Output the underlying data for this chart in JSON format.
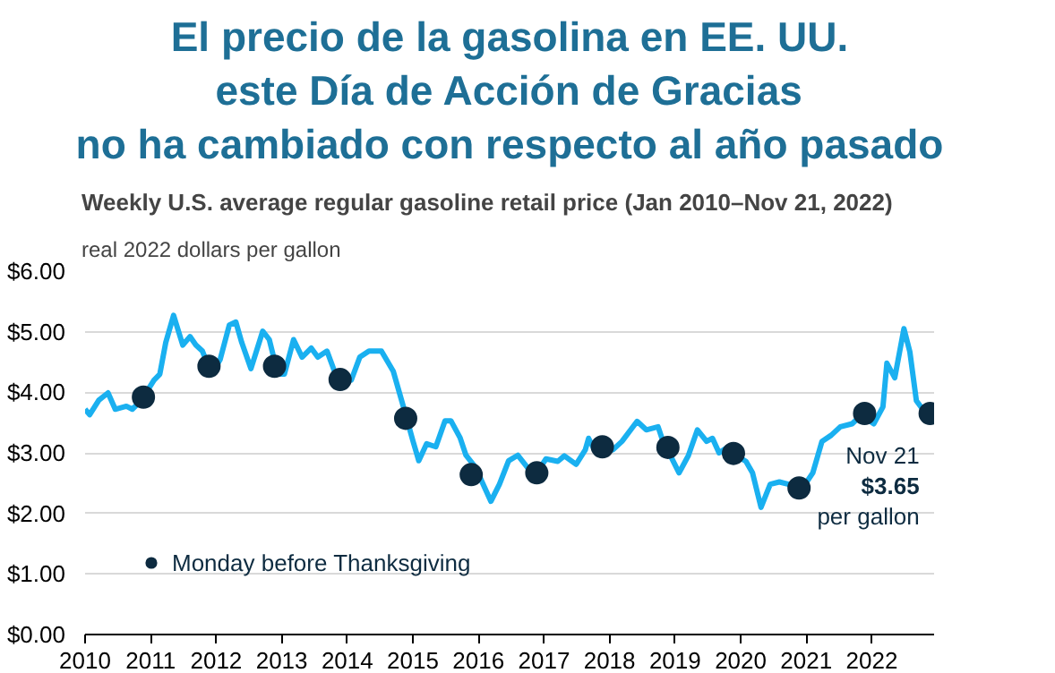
{
  "chart_data": {
    "type": "line",
    "title": "El precio de la gasolina en EE. UU.\neste Día de Acción de Gracias\nno ha cambiado con respecto al año pasado",
    "subtitle": "Weekly U.S. average regular gasoline retail price (Jan 2010–Nov 21, 2022)",
    "ylabel": "real 2022 dollars per gallon",
    "annotations": [
      {
        "text": "Nov 21\n$3.65\nper gallon",
        "x": 2022.89,
        "y": 3.65
      }
    ],
    "xlim": [
      2010,
      2022.95
    ],
    "xticks": [
      2010,
      2011,
      2012,
      2013,
      2014,
      2015,
      2016,
      2017,
      2018,
      2019,
      2020,
      2021,
      2022
    ],
    "ylim": [
      0,
      6
    ],
    "yticks": [
      {
        "value": 0,
        "label": "$0.00"
      },
      {
        "value": 1,
        "label": "$1.00"
      },
      {
        "value": 2,
        "label": "$2.00"
      },
      {
        "value": 3,
        "label": "$3.00"
      },
      {
        "value": 4,
        "label": "$4.00"
      },
      {
        "value": 5,
        "label": "$5.00"
      },
      {
        "value": 6,
        "label": "$6.00"
      }
    ],
    "grid": "y",
    "legend": "bottom left",
    "series": [
      {
        "color": "#1ab0f0",
        "x": [
          2010.0,
          2010.07,
          2010.21,
          2010.35,
          2010.46,
          2010.63,
          2010.72,
          2010.86,
          2011.05,
          2011.14,
          2011.23,
          2011.35,
          2011.49,
          2011.6,
          2011.69,
          2011.79,
          2011.93,
          2012.06,
          2012.2,
          2012.3,
          2012.39,
          2012.53,
          2012.71,
          2012.81,
          2012.94,
          2013.04,
          2013.18,
          2013.31,
          2013.45,
          2013.55,
          2013.69,
          2013.82,
          2013.94,
          2014.06,
          2014.19,
          2014.33,
          2014.52,
          2014.7,
          2014.89,
          2015.0,
          2015.09,
          2015.21,
          2015.35,
          2015.49,
          2015.58,
          2015.72,
          2015.81,
          2015.95,
          2016.19,
          2016.32,
          2016.46,
          2016.6,
          2016.74,
          2016.8,
          2016.89,
          2017.03,
          2017.21,
          2017.31,
          2017.49,
          2017.63,
          2017.68,
          2017.77,
          2017.91,
          2018.05,
          2018.19,
          2018.42,
          2018.56,
          2018.74,
          2018.83,
          2018.93,
          2019.06,
          2019.2,
          2019.34,
          2019.48,
          2019.57,
          2019.67,
          2019.81,
          2019.94,
          2020.08,
          2020.18,
          2020.31,
          2020.45,
          2020.59,
          2020.73,
          2020.92,
          2021.1,
          2021.24,
          2021.38,
          2021.52,
          2021.7,
          2021.84,
          2022.03,
          2022.17,
          2022.23,
          2022.35,
          2022.49,
          2022.58,
          2022.68,
          2022.81,
          2022.89
        ],
        "values": [
          3.72,
          3.63,
          3.87,
          3.99,
          3.72,
          3.77,
          3.72,
          3.87,
          4.2,
          4.3,
          4.82,
          5.27,
          4.78,
          4.92,
          4.78,
          4.68,
          4.3,
          4.54,
          5.11,
          5.16,
          4.82,
          4.39,
          5.01,
          4.87,
          4.3,
          4.3,
          4.87,
          4.58,
          4.73,
          4.58,
          4.68,
          4.3,
          4.2,
          4.2,
          4.58,
          4.68,
          4.68,
          4.35,
          3.63,
          3.2,
          2.87,
          3.15,
          3.1,
          3.53,
          3.53,
          3.25,
          2.96,
          2.77,
          2.2,
          2.48,
          2.87,
          2.96,
          2.77,
          2.67,
          2.67,
          2.9,
          2.86,
          2.95,
          2.81,
          3.05,
          3.24,
          3.05,
          3.1,
          3.05,
          3.19,
          3.52,
          3.38,
          3.43,
          3.14,
          2.95,
          2.67,
          2.95,
          3.38,
          3.19,
          3.24,
          3.0,
          3.1,
          2.95,
          2.86,
          2.67,
          2.1,
          2.48,
          2.52,
          2.48,
          2.38,
          2.67,
          3.19,
          3.29,
          3.43,
          3.48,
          3.62,
          3.48,
          3.76,
          4.48,
          4.24,
          5.05,
          4.67,
          3.86,
          3.67,
          3.65
        ]
      },
      {
        "type": "scatter",
        "name": "Monday before Thanksgiving",
        "color": "#0d2b40",
        "x": [
          2010.89,
          2011.89,
          2012.89,
          2013.89,
          2014.89,
          2015.89,
          2016.89,
          2017.89,
          2018.89,
          2019.89,
          2020.89,
          2021.89,
          2022.89
        ],
        "values": [
          3.92,
          4.43,
          4.43,
          4.21,
          3.57,
          2.64,
          2.67,
          3.1,
          3.09,
          2.99,
          2.42,
          3.65,
          3.65
        ]
      }
    ]
  }
}
